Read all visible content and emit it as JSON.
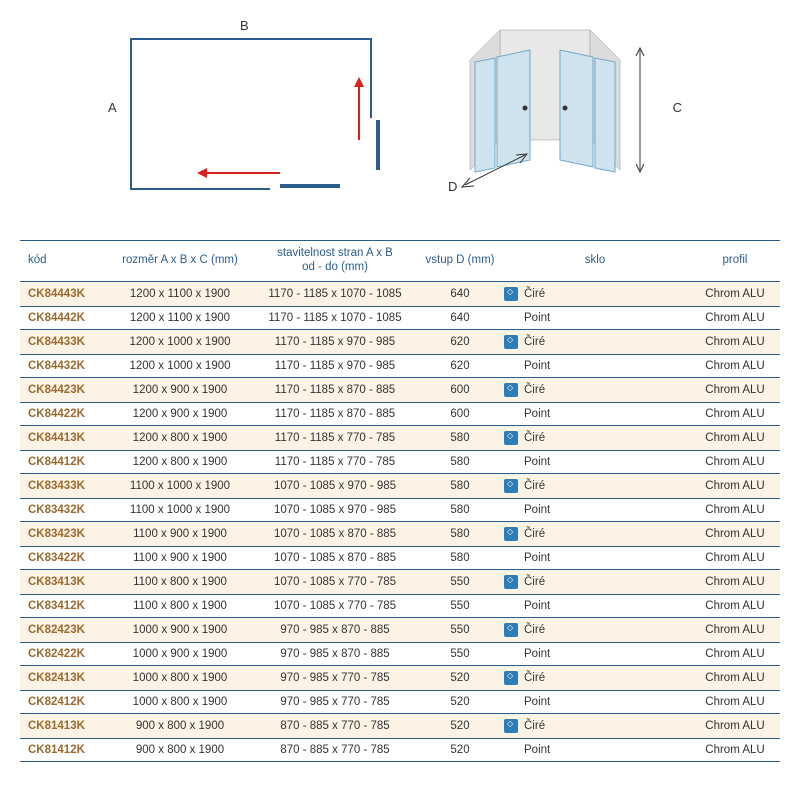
{
  "diagram": {
    "labels": {
      "A": "A",
      "B": "B",
      "C": "C",
      "D": "D"
    },
    "colors": {
      "frame": "#2b5d8c",
      "arrow": "#d91e1e",
      "glass": "#cfe3ee",
      "glass_edge": "#6fa8c9"
    }
  },
  "table": {
    "headers": {
      "kod": "kód",
      "rozmer": "rozměr A x B x C (mm)",
      "stav": "stavitelnost stran A x B\nod - do (mm)",
      "vstup": "vstup D (mm)",
      "sklo": "sklo",
      "profil": "profil"
    },
    "rows": [
      {
        "kod": "CK84443K",
        "rozmer": "1200 x 1100 x 1900",
        "stav": "1170 - 1185 x 1070 - 1085",
        "vstup": "640",
        "icon": true,
        "sklo": "Čiré",
        "profil": "Chrom ALU"
      },
      {
        "kod": "CK84442K",
        "rozmer": "1200 x 1100 x 1900",
        "stav": "1170 - 1185 x 1070 - 1085",
        "vstup": "640",
        "icon": false,
        "sklo": "Point",
        "profil": "Chrom ALU"
      },
      {
        "kod": "CK84433K",
        "rozmer": "1200 x 1000 x 1900",
        "stav": "1170 - 1185 x 970 - 985",
        "vstup": "620",
        "icon": true,
        "sklo": "Čiré",
        "profil": "Chrom ALU"
      },
      {
        "kod": "CK84432K",
        "rozmer": "1200 x 1000 x 1900",
        "stav": "1170 - 1185 x 970 - 985",
        "vstup": "620",
        "icon": false,
        "sklo": "Point",
        "profil": "Chrom ALU"
      },
      {
        "kod": "CK84423K",
        "rozmer": "1200 x 900 x 1900",
        "stav": "1170 - 1185 x 870 - 885",
        "vstup": "600",
        "icon": true,
        "sklo": "Čiré",
        "profil": "Chrom ALU"
      },
      {
        "kod": "CK84422K",
        "rozmer": "1200 x 900 x 1900",
        "stav": "1170 - 1185 x 870 - 885",
        "vstup": "600",
        "icon": false,
        "sklo": "Point",
        "profil": "Chrom ALU"
      },
      {
        "kod": "CK84413K",
        "rozmer": "1200 x 800 x 1900",
        "stav": "1170 - 1185 x 770 - 785",
        "vstup": "580",
        "icon": true,
        "sklo": "Čiré",
        "profil": "Chrom ALU"
      },
      {
        "kod": "CK84412K",
        "rozmer": "1200 x 800 x 1900",
        "stav": "1170 - 1185 x 770 - 785",
        "vstup": "580",
        "icon": false,
        "sklo": "Point",
        "profil": "Chrom ALU"
      },
      {
        "kod": "CK83433K",
        "rozmer": "1100 x 1000 x 1900",
        "stav": "1070 - 1085 x 970 - 985",
        "vstup": "580",
        "icon": true,
        "sklo": "Čiré",
        "profil": "Chrom ALU"
      },
      {
        "kod": "CK83432K",
        "rozmer": "1100 x 1000 x 1900",
        "stav": "1070 - 1085 x 970 - 985",
        "vstup": "580",
        "icon": false,
        "sklo": "Point",
        "profil": "Chrom ALU"
      },
      {
        "kod": "CK83423K",
        "rozmer": "1100 x 900 x 1900",
        "stav": "1070 - 1085 x 870 - 885",
        "vstup": "580",
        "icon": true,
        "sklo": "Čiré",
        "profil": "Chrom ALU"
      },
      {
        "kod": "CK83422K",
        "rozmer": "1100 x 900 x 1900",
        "stav": "1070 - 1085 x 870 - 885",
        "vstup": "580",
        "icon": false,
        "sklo": "Point",
        "profil": "Chrom ALU"
      },
      {
        "kod": "CK83413K",
        "rozmer": "1100 x 800 x 1900",
        "stav": "1070 - 1085 x 770 - 785",
        "vstup": "550",
        "icon": true,
        "sklo": "Čiré",
        "profil": "Chrom ALU"
      },
      {
        "kod": "CK83412K",
        "rozmer": "1100 x 800 x 1900",
        "stav": "1070 - 1085 x 770 - 785",
        "vstup": "550",
        "icon": false,
        "sklo": "Point",
        "profil": "Chrom ALU"
      },
      {
        "kod": "CK82423K",
        "rozmer": "1000 x 900 x 1900",
        "stav": "970 - 985 x 870 - 885",
        "vstup": "550",
        "icon": true,
        "sklo": "Čiré",
        "profil": "Chrom ALU"
      },
      {
        "kod": "CK82422K",
        "rozmer": "1000 x 900 x 1900",
        "stav": "970 - 985 x 870 - 885",
        "vstup": "550",
        "icon": false,
        "sklo": "Point",
        "profil": "Chrom ALU"
      },
      {
        "kod": "CK82413K",
        "rozmer": "1000 x 800 x 1900",
        "stav": "970 - 985 x 770 - 785",
        "vstup": "520",
        "icon": true,
        "sklo": "Čiré",
        "profil": "Chrom ALU"
      },
      {
        "kod": "CK82412K",
        "rozmer": "1000 x 800 x 1900",
        "stav": "970 - 985 x 770 - 785",
        "vstup": "520",
        "icon": false,
        "sklo": "Point",
        "profil": "Chrom ALU"
      },
      {
        "kod": "CK81413K",
        "rozmer": "900 x 800 x 1900",
        "stav": "870 - 885 x 770 - 785",
        "vstup": "520",
        "icon": true,
        "sklo": "Čiré",
        "profil": "Chrom ALU"
      },
      {
        "kod": "CK81412K",
        "rozmer": "900 x 800 x 1900",
        "stav": "870 - 885 x 770 - 785",
        "vstup": "520",
        "icon": false,
        "sklo": "Point",
        "profil": "Chrom ALU"
      }
    ]
  }
}
